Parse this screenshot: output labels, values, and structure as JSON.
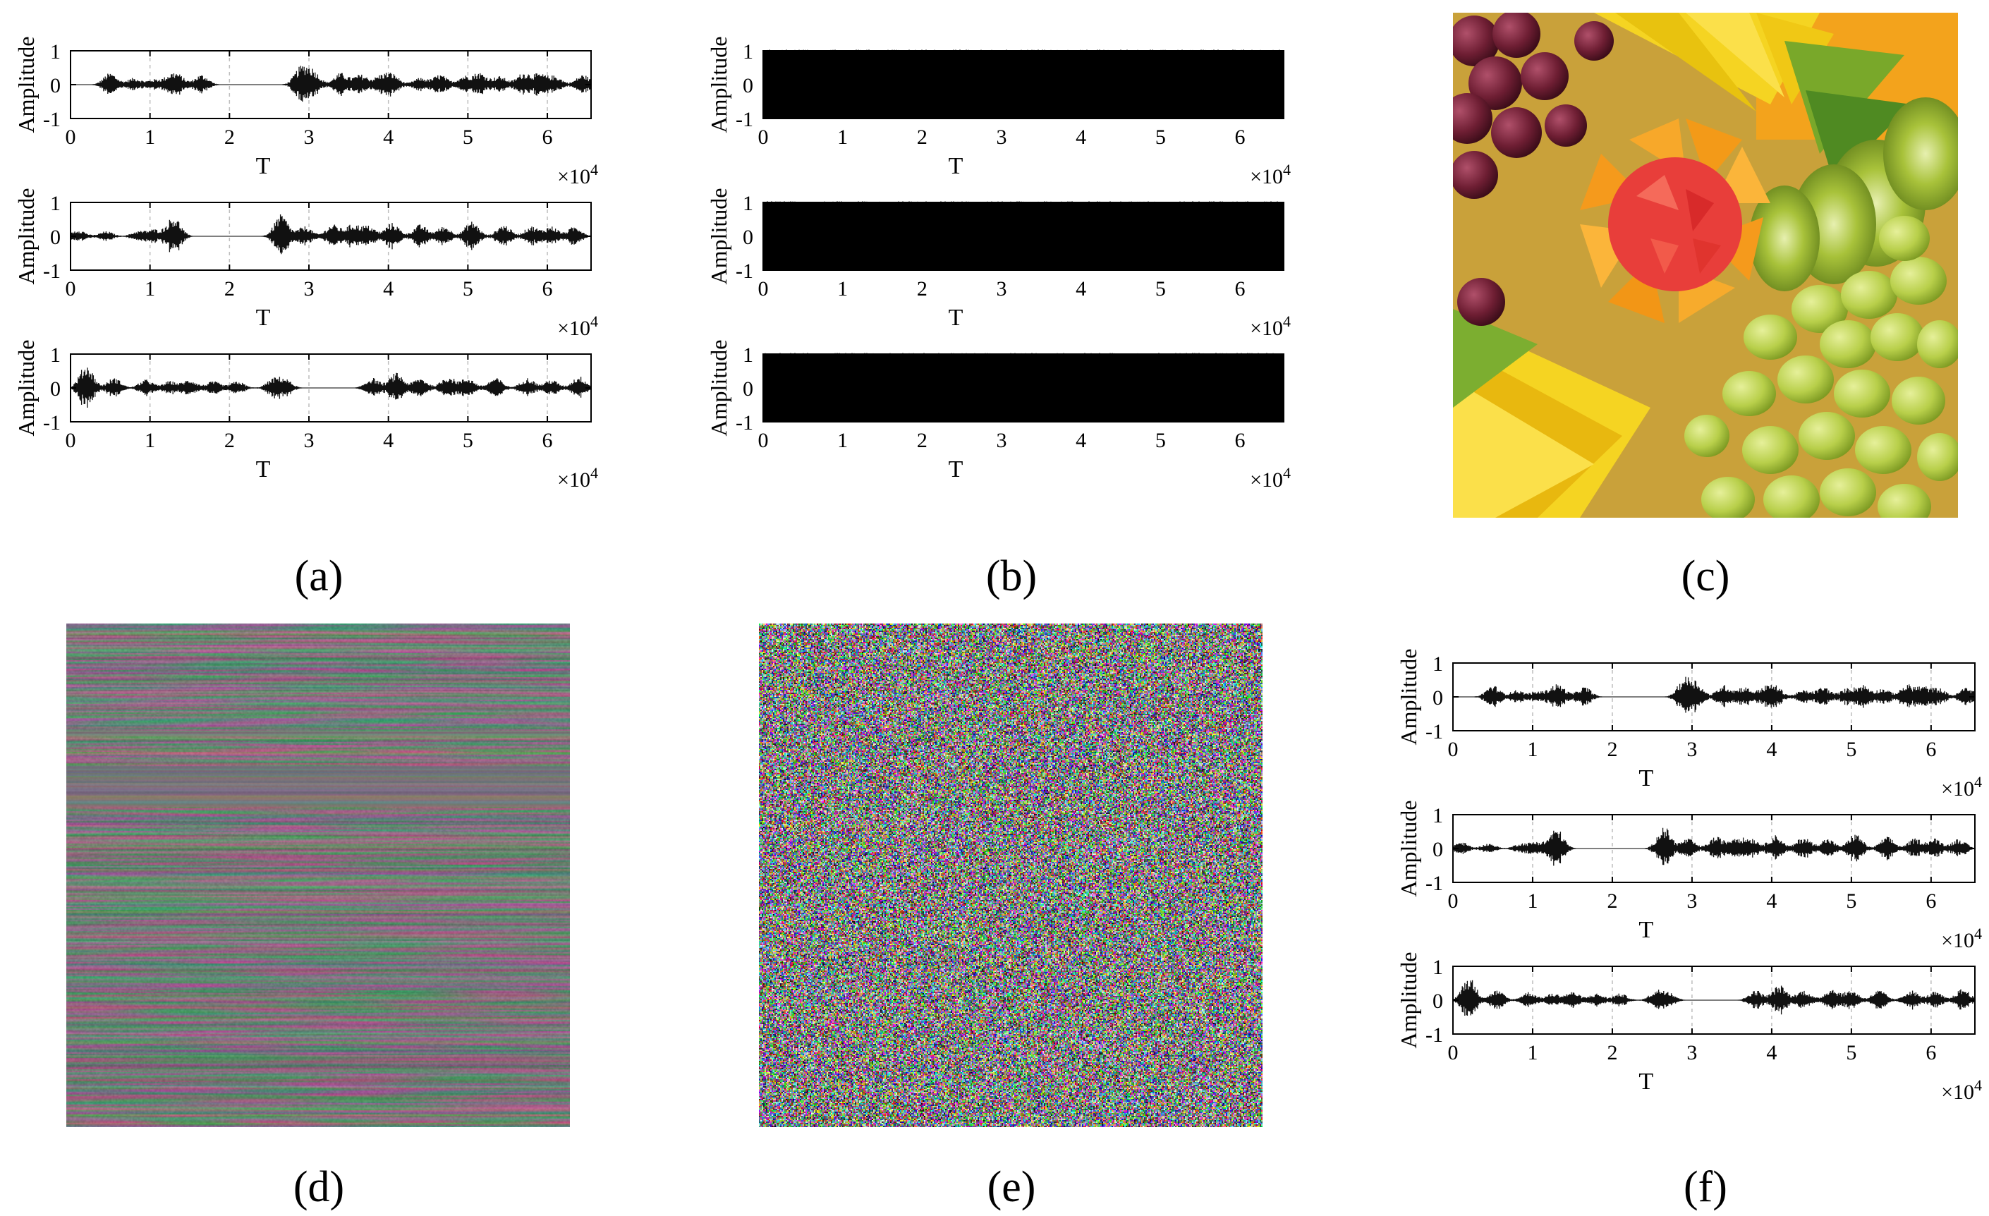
{
  "figure": {
    "captions": [
      "(a)",
      "(b)",
      "(c)",
      "(d)",
      "(e)",
      "(f)"
    ]
  },
  "chart_data": [
    {
      "type": "line",
      "panel": "a",
      "description": "waveform",
      "xlabel": "T",
      "ylabel": "Amplitude",
      "x_multiplier": "×10^4",
      "xlim": [
        0,
        6.55
      ],
      "ylim": [
        -1,
        1
      ],
      "xticks": [
        0,
        1,
        2,
        3,
        4,
        5,
        6
      ],
      "yticks": [
        -1,
        0,
        1
      ],
      "bursts": [
        [
          0.5,
          0.35
        ],
        [
          0.8,
          0.2
        ],
        [
          1.05,
          0.15
        ],
        [
          1.25,
          0.2
        ],
        [
          1.35,
          0.25
        ],
        [
          1.65,
          0.3
        ],
        [
          2.9,
          0.5
        ],
        [
          3.05,
          0.4
        ],
        [
          3.4,
          0.35
        ],
        [
          3.65,
          0.3
        ],
        [
          3.9,
          0.25
        ],
        [
          4.05,
          0.3
        ],
        [
          4.4,
          0.2
        ],
        [
          4.65,
          0.3
        ],
        [
          4.95,
          0.25
        ],
        [
          5.15,
          0.35
        ],
        [
          5.4,
          0.25
        ],
        [
          5.7,
          0.35
        ],
        [
          5.9,
          0.3
        ],
        [
          6.1,
          0.25
        ],
        [
          6.45,
          0.3
        ]
      ]
    },
    {
      "type": "line",
      "panel": "a",
      "description": "waveform",
      "xlabel": "T",
      "ylabel": "Amplitude",
      "x_multiplier": "×10^4",
      "xlim": [
        0,
        6.55
      ],
      "ylim": [
        -1,
        1
      ],
      "xticks": [
        0,
        1,
        2,
        3,
        4,
        5,
        6
      ],
      "yticks": [
        -1,
        0,
        1
      ],
      "bursts": [
        [
          0.1,
          0.2
        ],
        [
          0.45,
          0.15
        ],
        [
          0.85,
          0.15
        ],
        [
          1.05,
          0.2
        ],
        [
          1.3,
          0.6
        ],
        [
          2.65,
          0.65
        ],
        [
          2.95,
          0.3
        ],
        [
          3.3,
          0.35
        ],
        [
          3.55,
          0.35
        ],
        [
          3.75,
          0.3
        ],
        [
          4.05,
          0.4
        ],
        [
          4.4,
          0.35
        ],
        [
          4.7,
          0.3
        ],
        [
          5.05,
          0.45
        ],
        [
          5.45,
          0.35
        ],
        [
          5.8,
          0.3
        ],
        [
          6.05,
          0.3
        ],
        [
          6.35,
          0.3
        ]
      ]
    },
    {
      "type": "line",
      "panel": "a",
      "description": "waveform",
      "xlabel": "T",
      "ylabel": "Amplitude",
      "x_multiplier": "×10^4",
      "xlim": [
        0,
        6.55
      ],
      "ylim": [
        -1,
        1
      ],
      "xticks": [
        0,
        1,
        2,
        3,
        4,
        5,
        6
      ],
      "yticks": [
        -1,
        0,
        1
      ],
      "bursts": [
        [
          0.2,
          0.7
        ],
        [
          0.55,
          0.3
        ],
        [
          0.95,
          0.25
        ],
        [
          1.25,
          0.2
        ],
        [
          1.5,
          0.25
        ],
        [
          1.8,
          0.2
        ],
        [
          2.1,
          0.2
        ],
        [
          2.55,
          0.25
        ],
        [
          2.7,
          0.25
        ],
        [
          3.8,
          0.3
        ],
        [
          4.1,
          0.45
        ],
        [
          4.4,
          0.3
        ],
        [
          4.75,
          0.35
        ],
        [
          5.0,
          0.3
        ],
        [
          5.35,
          0.3
        ],
        [
          5.75,
          0.3
        ],
        [
          6.05,
          0.25
        ],
        [
          6.4,
          0.35
        ]
      ]
    },
    {
      "type": "line",
      "panel": "b",
      "description": "noise",
      "xlabel": "T",
      "ylabel": "Amplitude",
      "x_multiplier": "×10^4",
      "xlim": [
        0,
        6.55
      ],
      "ylim": [
        -1,
        1
      ],
      "xticks": [
        0,
        1,
        2,
        3,
        4,
        5,
        6
      ],
      "yticks": [
        -1,
        0,
        1
      ],
      "fill_range": [
        -1,
        1
      ]
    },
    {
      "type": "line",
      "panel": "b",
      "description": "noise",
      "xlabel": "T",
      "ylabel": "Amplitude",
      "x_multiplier": "×10^4",
      "xlim": [
        0,
        6.55
      ],
      "ylim": [
        -1,
        1
      ],
      "xticks": [
        0,
        1,
        2,
        3,
        4,
        5,
        6
      ],
      "yticks": [
        -1,
        0,
        1
      ],
      "fill_range": [
        -1,
        1
      ]
    },
    {
      "type": "line",
      "panel": "b",
      "description": "noise",
      "xlabel": "T",
      "ylabel": "Amplitude",
      "x_multiplier": "×10^4",
      "xlim": [
        0,
        6.55
      ],
      "ylim": [
        -1,
        1
      ],
      "xticks": [
        0,
        1,
        2,
        3,
        4,
        5,
        6
      ],
      "yticks": [
        -1,
        0,
        1
      ],
      "fill_range": [
        -1,
        1
      ]
    },
    {
      "type": "line",
      "panel": "f",
      "description": "waveform",
      "xlabel": "T",
      "ylabel": "Amplitude",
      "x_multiplier": "×10^4",
      "xlim": [
        0,
        6.55
      ],
      "ylim": [
        -1,
        1
      ],
      "xticks": [
        0,
        1,
        2,
        3,
        4,
        5,
        6
      ],
      "yticks": [
        -1,
        0,
        1
      ],
      "bursts": [
        [
          0.5,
          0.35
        ],
        [
          0.8,
          0.2
        ],
        [
          1.05,
          0.15
        ],
        [
          1.25,
          0.2
        ],
        [
          1.35,
          0.25
        ],
        [
          1.65,
          0.3
        ],
        [
          2.9,
          0.5
        ],
        [
          3.05,
          0.4
        ],
        [
          3.4,
          0.35
        ],
        [
          3.65,
          0.3
        ],
        [
          3.9,
          0.25
        ],
        [
          4.05,
          0.3
        ],
        [
          4.4,
          0.2
        ],
        [
          4.65,
          0.3
        ],
        [
          4.95,
          0.25
        ],
        [
          5.15,
          0.35
        ],
        [
          5.4,
          0.25
        ],
        [
          5.7,
          0.35
        ],
        [
          5.9,
          0.3
        ],
        [
          6.1,
          0.25
        ],
        [
          6.45,
          0.3
        ]
      ]
    },
    {
      "type": "line",
      "panel": "f",
      "description": "waveform",
      "xlabel": "T",
      "ylabel": "Amplitude",
      "x_multiplier": "×10^4",
      "xlim": [
        0,
        6.55
      ],
      "ylim": [
        -1,
        1
      ],
      "xticks": [
        0,
        1,
        2,
        3,
        4,
        5,
        6
      ],
      "yticks": [
        -1,
        0,
        1
      ],
      "bursts": [
        [
          0.1,
          0.2
        ],
        [
          0.45,
          0.15
        ],
        [
          0.85,
          0.15
        ],
        [
          1.05,
          0.2
        ],
        [
          1.3,
          0.6
        ],
        [
          2.65,
          0.65
        ],
        [
          2.95,
          0.3
        ],
        [
          3.3,
          0.35
        ],
        [
          3.55,
          0.35
        ],
        [
          3.75,
          0.3
        ],
        [
          4.05,
          0.4
        ],
        [
          4.4,
          0.35
        ],
        [
          4.7,
          0.3
        ],
        [
          5.05,
          0.45
        ],
        [
          5.45,
          0.35
        ],
        [
          5.8,
          0.3
        ],
        [
          6.05,
          0.3
        ],
        [
          6.35,
          0.3
        ]
      ]
    },
    {
      "type": "line",
      "panel": "f",
      "description": "waveform",
      "xlabel": "T",
      "ylabel": "Amplitude",
      "x_multiplier": "×10^4",
      "xlim": [
        0,
        6.55
      ],
      "ylim": [
        -1,
        1
      ],
      "xticks": [
        0,
        1,
        2,
        3,
        4,
        5,
        6
      ],
      "yticks": [
        -1,
        0,
        1
      ],
      "bursts": [
        [
          0.2,
          0.7
        ],
        [
          0.55,
          0.3
        ],
        [
          0.95,
          0.25
        ],
        [
          1.25,
          0.2
        ],
        [
          1.5,
          0.25
        ],
        [
          1.8,
          0.2
        ],
        [
          2.1,
          0.2
        ],
        [
          2.55,
          0.25
        ],
        [
          2.7,
          0.25
        ],
        [
          3.8,
          0.3
        ],
        [
          4.1,
          0.45
        ],
        [
          4.4,
          0.3
        ],
        [
          4.75,
          0.35
        ],
        [
          5.0,
          0.3
        ],
        [
          5.35,
          0.3
        ],
        [
          5.75,
          0.3
        ],
        [
          6.05,
          0.25
        ],
        [
          6.4,
          0.35
        ]
      ]
    }
  ]
}
